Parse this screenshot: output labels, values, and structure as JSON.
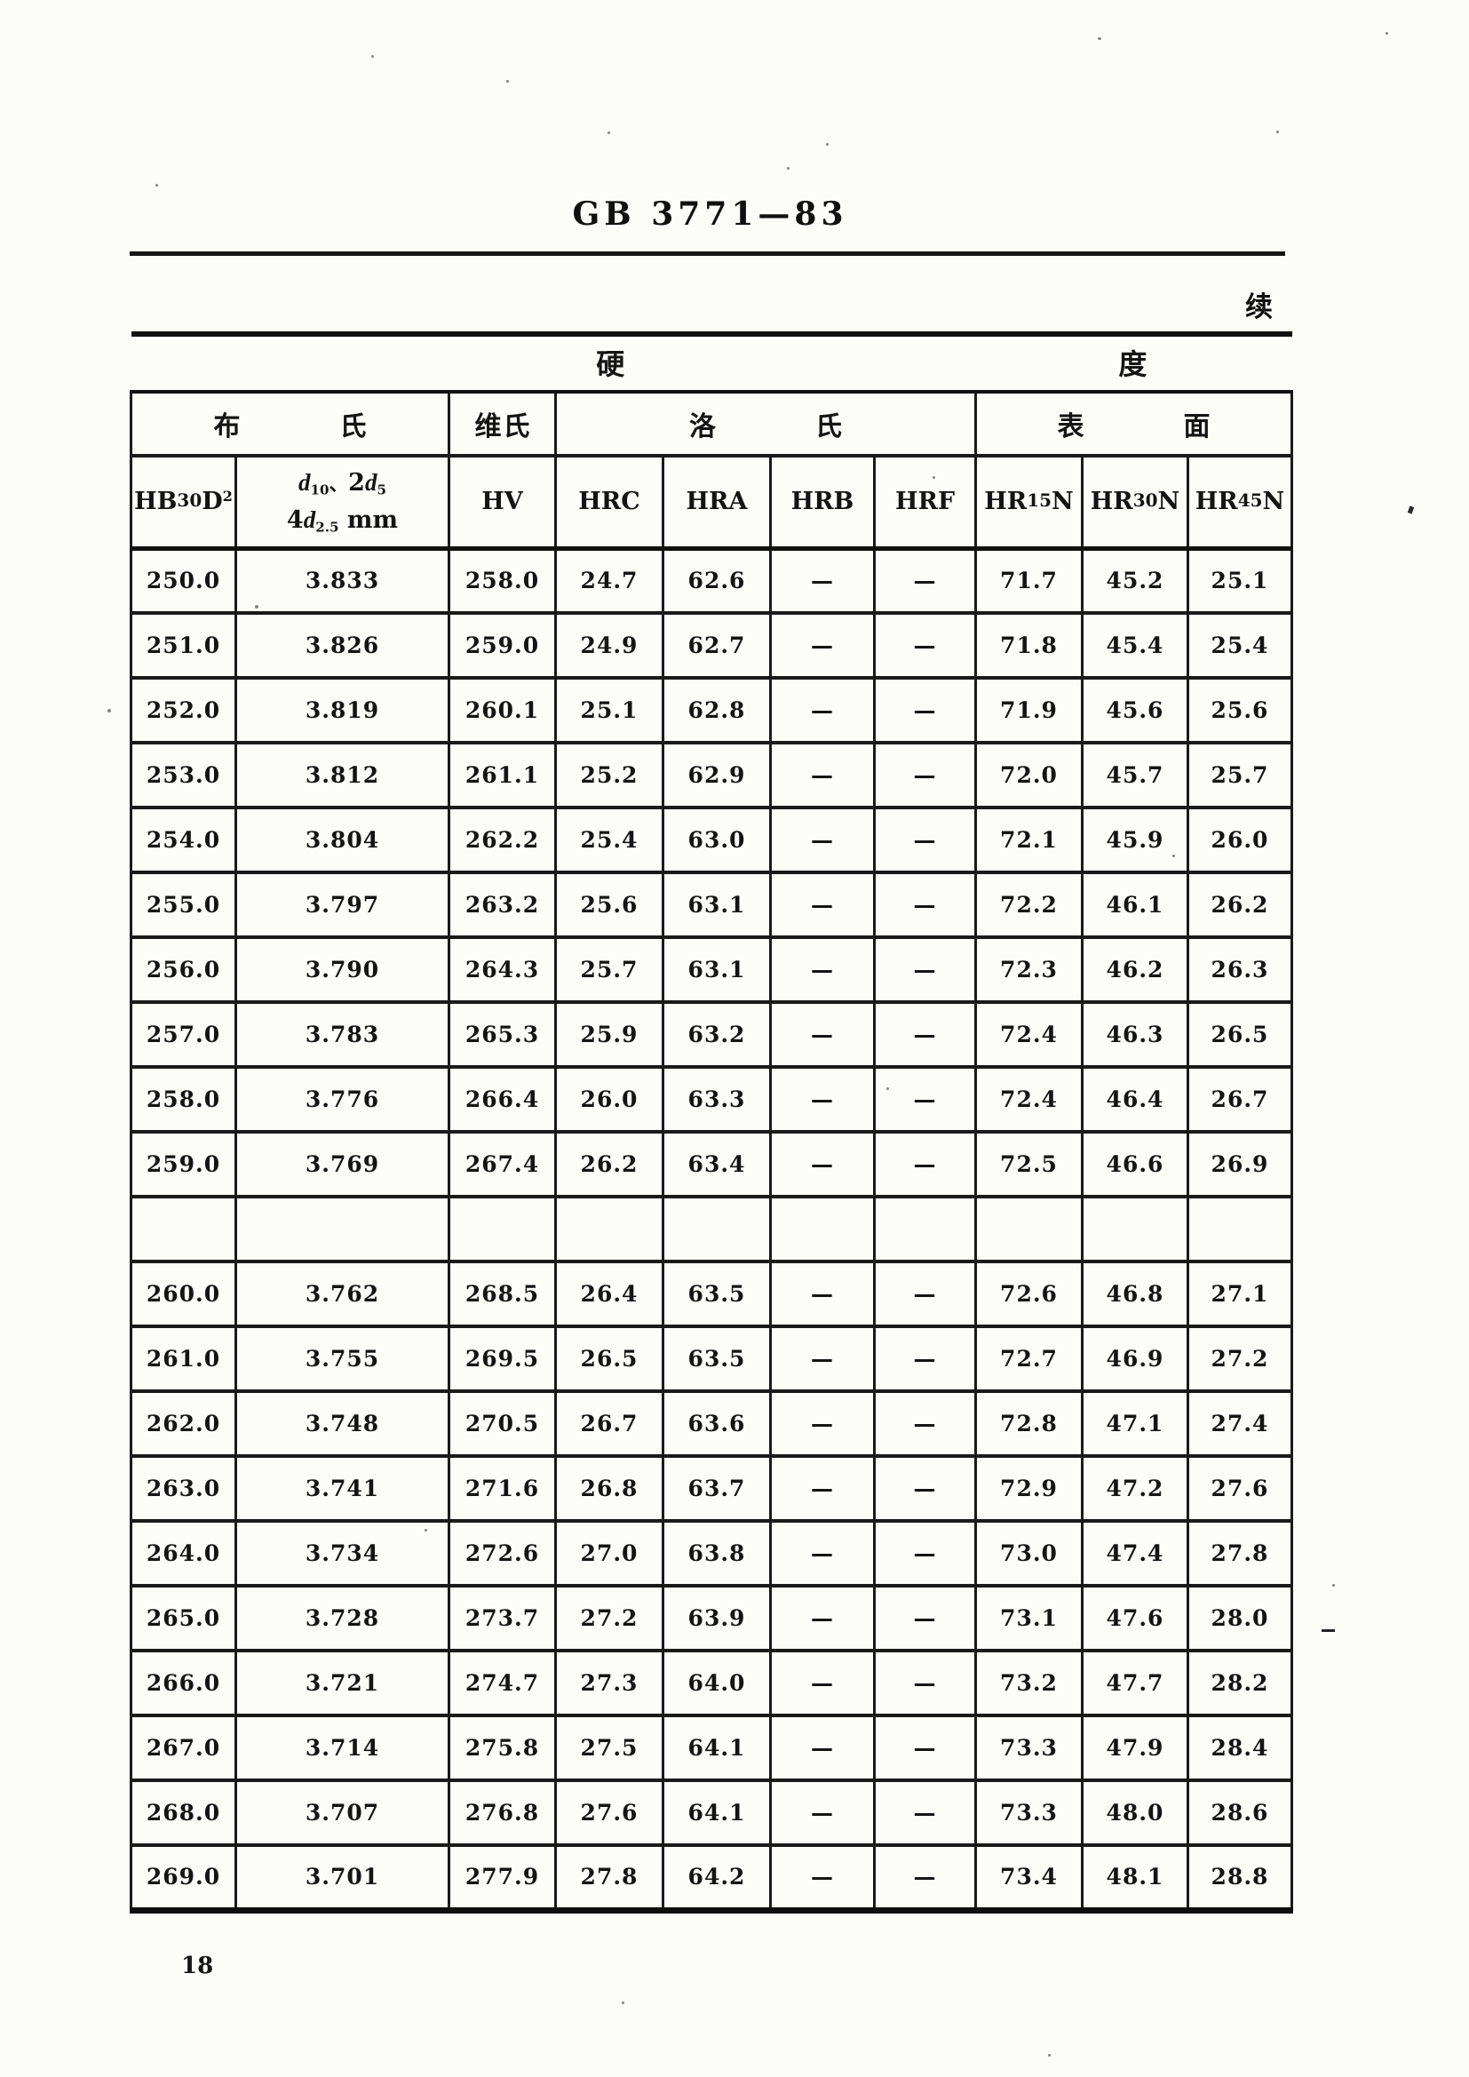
{
  "page": {
    "standard_code": "GB 3771—83",
    "continued_label": "续",
    "page_number": "18"
  },
  "table": {
    "group_header": {
      "left_char": "硬",
      "right_char": "度"
    },
    "method_headers": [
      {
        "id": "brinell",
        "label": "布氏",
        "colspan": 2,
        "spread": true
      },
      {
        "id": "vickers",
        "label": "维氏",
        "colspan": 1,
        "spread": false
      },
      {
        "id": "rockwell",
        "label": "洛氏",
        "colspan": 4,
        "spread": true
      },
      {
        "id": "superficial",
        "label": "表面",
        "colspan": 3,
        "spread": true
      }
    ],
    "column_headers": [
      {
        "id": "hb-30d2",
        "lines": [
          [
            {
              "t": "HB"
            },
            {
              "t": "30",
              "s": "raise"
            },
            {
              "t": "D"
            },
            {
              "t": "2",
              "s": "sup"
            }
          ]
        ]
      },
      {
        "id": "indentation-diameter",
        "lines": [
          [
            {
              "t": "d",
              "s": "it"
            },
            {
              "t": "10",
              "s": "sub"
            },
            {
              "t": "、",
              "s": "cjk"
            },
            {
              "t": "2"
            },
            {
              "t": "d",
              "s": "it"
            },
            {
              "t": "5",
              "s": "sub"
            }
          ],
          [
            {
              "t": "4"
            },
            {
              "t": "d",
              "s": "it"
            },
            {
              "t": "2.5",
              "s": "sub"
            },
            {
              "t": " mm"
            }
          ]
        ]
      },
      {
        "id": "hv",
        "lines": [
          [
            {
              "t": "HV"
            }
          ]
        ]
      },
      {
        "id": "hrc",
        "lines": [
          [
            {
              "t": "HRC"
            }
          ]
        ]
      },
      {
        "id": "hra",
        "lines": [
          [
            {
              "t": "HRA"
            }
          ]
        ]
      },
      {
        "id": "hrb",
        "lines": [
          [
            {
              "t": "HRB"
            }
          ]
        ]
      },
      {
        "id": "hrf",
        "lines": [
          [
            {
              "t": "HRF"
            }
          ]
        ]
      },
      {
        "id": "hr15n",
        "lines": [
          [
            {
              "t": "HR"
            },
            {
              "t": "15",
              "s": "raise"
            },
            {
              "t": "N"
            }
          ]
        ]
      },
      {
        "id": "hr30n",
        "lines": [
          [
            {
              "t": "HR"
            },
            {
              "t": "30",
              "s": "raise"
            },
            {
              "t": "N"
            }
          ]
        ]
      },
      {
        "id": "hr45n",
        "lines": [
          [
            {
              "t": "HR"
            },
            {
              "t": "45",
              "s": "raise"
            },
            {
              "t": "N"
            }
          ]
        ]
      }
    ],
    "rows": [
      [
        "250.0",
        "3.833",
        "258.0",
        "24.7",
        "62.6",
        "—",
        "—",
        "71.7",
        "45.2",
        "25.1"
      ],
      [
        "251.0",
        "3.826",
        "259.0",
        "24.9",
        "62.7",
        "—",
        "—",
        "71.8",
        "45.4",
        "25.4"
      ],
      [
        "252.0",
        "3.819",
        "260.1",
        "25.1",
        "62.8",
        "—",
        "—",
        "71.9",
        "45.6",
        "25.6"
      ],
      [
        "253.0",
        "3.812",
        "261.1",
        "25.2",
        "62.9",
        "—",
        "—",
        "72.0",
        "45.7",
        "25.7"
      ],
      [
        "254.0",
        "3.804",
        "262.2",
        "25.4",
        "63.0",
        "—",
        "—",
        "72.1",
        "45.9",
        "26.0"
      ],
      [
        "255.0",
        "3.797",
        "263.2",
        "25.6",
        "63.1",
        "—",
        "—",
        "72.2",
        "46.1",
        "26.2"
      ],
      [
        "256.0",
        "3.790",
        "264.3",
        "25.7",
        "63.1",
        "—",
        "—",
        "72.3",
        "46.2",
        "26.3"
      ],
      [
        "257.0",
        "3.783",
        "265.3",
        "25.9",
        "63.2",
        "—",
        "—",
        "72.4",
        "46.3",
        "26.5"
      ],
      [
        "258.0",
        "3.776",
        "266.4",
        "26.0",
        "63.3",
        "—",
        "—",
        "72.4",
        "46.4",
        "26.7"
      ],
      [
        "259.0",
        "3.769",
        "267.4",
        "26.2",
        "63.4",
        "—",
        "—",
        "72.5",
        "46.6",
        "26.9"
      ],
      [
        "",
        "",
        "",
        "",
        "",
        "",
        "",
        "",
        "",
        ""
      ],
      [
        "260.0",
        "3.762",
        "268.5",
        "26.4",
        "63.5",
        "—",
        "—",
        "72.6",
        "46.8",
        "27.1"
      ],
      [
        "261.0",
        "3.755",
        "269.5",
        "26.5",
        "63.5",
        "—",
        "—",
        "72.7",
        "46.9",
        "27.2"
      ],
      [
        "262.0",
        "3.748",
        "270.5",
        "26.7",
        "63.6",
        "—",
        "—",
        "72.8",
        "47.1",
        "27.4"
      ],
      [
        "263.0",
        "3.741",
        "271.6",
        "26.8",
        "63.7",
        "—",
        "—",
        "72.9",
        "47.2",
        "27.6"
      ],
      [
        "264.0",
        "3.734",
        "272.6",
        "27.0",
        "63.8",
        "—",
        "—",
        "73.0",
        "47.4",
        "27.8"
      ],
      [
        "265.0",
        "3.728",
        "273.7",
        "27.2",
        "63.9",
        "—",
        "—",
        "73.1",
        "47.6",
        "28.0"
      ],
      [
        "266.0",
        "3.721",
        "274.7",
        "27.3",
        "64.0",
        "—",
        "—",
        "73.2",
        "47.7",
        "28.2"
      ],
      [
        "267.0",
        "3.714",
        "275.8",
        "27.5",
        "64.1",
        "—",
        "—",
        "73.3",
        "47.9",
        "28.4"
      ],
      [
        "268.0",
        "3.707",
        "276.8",
        "27.6",
        "64.1",
        "—",
        "—",
        "73.3",
        "48.0",
        "28.6"
      ],
      [
        "269.0",
        "3.701",
        "277.9",
        "27.8",
        "64.2",
        "—",
        "—",
        "73.4",
        "48.1",
        "28.8"
      ]
    ]
  }
}
